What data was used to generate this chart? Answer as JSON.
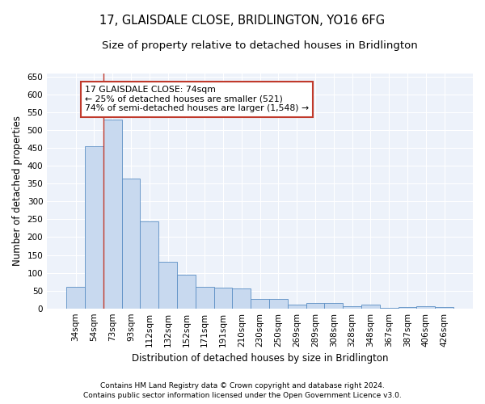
{
  "title": "17, GLAISDALE CLOSE, BRIDLINGTON, YO16 6FG",
  "subtitle": "Size of property relative to detached houses in Bridlington",
  "xlabel": "Distribution of detached houses by size in Bridlington",
  "ylabel": "Number of detached properties",
  "categories": [
    "34sqm",
    "54sqm",
    "73sqm",
    "93sqm",
    "112sqm",
    "132sqm",
    "152sqm",
    "171sqm",
    "191sqm",
    "210sqm",
    "230sqm",
    "250sqm",
    "269sqm",
    "289sqm",
    "308sqm",
    "328sqm",
    "348sqm",
    "367sqm",
    "387sqm",
    "406sqm",
    "426sqm"
  ],
  "values": [
    60,
    455,
    530,
    365,
    245,
    130,
    95,
    60,
    58,
    55,
    27,
    27,
    10,
    15,
    15,
    7,
    10,
    2,
    4,
    6,
    3
  ],
  "bar_color": "#c8d9ef",
  "bar_edge_color": "#5b8ec4",
  "vline_x_index": 2,
  "vline_color": "#c0392b",
  "annotation_text_line1": "17 GLAISDALE CLOSE: 74sqm",
  "annotation_text_line2": "← 25% of detached houses are smaller (521)",
  "annotation_text_line3": "74% of semi-detached houses are larger (1,548) →",
  "ylim": [
    0,
    660
  ],
  "yticks": [
    0,
    50,
    100,
    150,
    200,
    250,
    300,
    350,
    400,
    450,
    500,
    550,
    600,
    650
  ],
  "background_color": "#edf2fa",
  "grid_color": "#ffffff",
  "footer_line1": "Contains HM Land Registry data © Crown copyright and database right 2024.",
  "footer_line2": "Contains public sector information licensed under the Open Government Licence v3.0."
}
